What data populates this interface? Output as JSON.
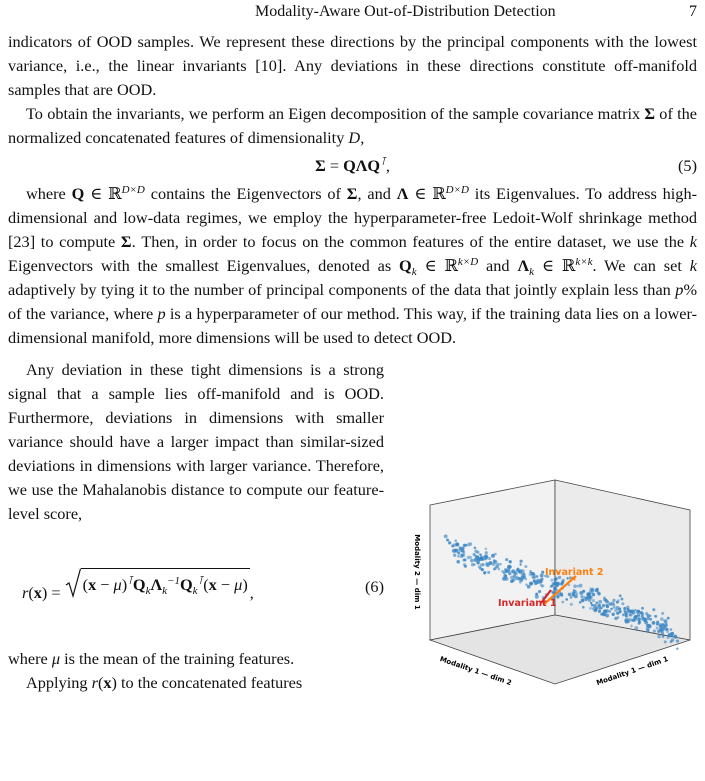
{
  "header": {
    "running_title": "Modality-Aware Out-of-Distribution Detection",
    "page_number": "7"
  },
  "paragraphs": [
    {
      "segments": [
        {
          "t": "indicators of OOD samples. We represent these directions by the principal components with the lowest variance, i.e., the linear invariants [10]. Any deviations in these directions constitute off-manifold samples that are OOD."
        }
      ]
    },
    {
      "segments": [
        {
          "t": "To obtain the invariants, we perform an Eigen decomposition of the sample covariance matrix "
        },
        {
          "b": "Σ"
        },
        {
          "t": " of the normalized concatenated features of dimensionality "
        },
        {
          "i": "D"
        },
        {
          "t": ","
        }
      ]
    },
    {
      "segments": [
        {
          "t": "where "
        },
        {
          "b": "Q"
        },
        {
          "t": " ∈ ℝ"
        },
        {
          "sup": "D×D"
        },
        {
          "t": " contains the Eigenvectors of "
        },
        {
          "b": "Σ"
        },
        {
          "t": ", and "
        },
        {
          "b": "Λ"
        },
        {
          "t": " ∈ ℝ"
        },
        {
          "sup": "D×D"
        },
        {
          "t": " its Eigenvalues. To address high-dimensional and low-data regimes, we employ the hyperparameter-free Ledoit-Wolf shrinkage method [23] to compute "
        },
        {
          "b": "Σ"
        },
        {
          "t": ". Then, in order to focus on the common features of the entire dataset, we use the "
        },
        {
          "i": "k"
        },
        {
          "t": " Eigenvectors with the smallest Eigenvalues, denoted as "
        },
        {
          "b": "Q"
        },
        {
          "sub": "k"
        },
        {
          "t": " ∈ ℝ"
        },
        {
          "sup": "k×D"
        },
        {
          "t": " and "
        },
        {
          "b": "Λ"
        },
        {
          "sub": "k"
        },
        {
          "t": " ∈ ℝ"
        },
        {
          "sup": "k×k"
        },
        {
          "t": ". We can set "
        },
        {
          "i": "k"
        },
        {
          "t": " adaptively by tying it to the number of principal components of the data that jointly explain less than "
        },
        {
          "i": "p"
        },
        {
          "t": "% of the variance, where "
        },
        {
          "i": "p"
        },
        {
          "t": " is a hyperparameter of our method. This way, if the training data lies on a lower-dimensional manifold, more dimensions will be used to detect OOD."
        }
      ]
    },
    {
      "segments": [
        {
          "t": "Any deviation in these tight dimensions is a strong signal that a sample lies off-manifold and is OOD. Furthermore, deviations in dimensions with smaller variance should have a larger impact than similar-sized deviations in dimensions with larger variance. Therefore, we use the Mahalanobis distance to compute our feature-level score,"
        }
      ]
    },
    {
      "segments": [
        {
          "t": "where "
        },
        {
          "i": "μ"
        },
        {
          "t": " is the mean of the training features."
        }
      ]
    },
    {
      "segments": [
        {
          "t": "Applying "
        },
        {
          "i": "r"
        },
        {
          "t": "("
        },
        {
          "b": "x"
        },
        {
          "t": ") to the concatenated features"
        }
      ]
    }
  ],
  "equations": [
    {
      "segments": [
        {
          "b": "Σ"
        },
        {
          "t": " = "
        },
        {
          "b": "QΛQ"
        },
        {
          "sup": "⊺"
        },
        {
          "t": ","
        }
      ],
      "number": "(5)"
    },
    {
      "lhs": [
        {
          "i": "r"
        },
        {
          "t": "("
        },
        {
          "b": "x"
        },
        {
          "t": ") = "
        }
      ],
      "radicand": [
        {
          "t": "("
        },
        {
          "b": "x"
        },
        {
          "t": " − "
        },
        {
          "i": "μ"
        },
        {
          "t": ")"
        },
        {
          "sup": "⊺"
        },
        {
          "b": "Q"
        },
        {
          "sub": "k"
        },
        {
          "b": "Λ"
        },
        {
          "sub": "k"
        },
        {
          "sup": "−1"
        },
        {
          "b": "Q"
        },
        {
          "sub": "k"
        },
        {
          "sup": "⊺"
        },
        {
          "t": "("
        },
        {
          "b": "x"
        },
        {
          "t": " − "
        },
        {
          "i": "μ"
        },
        {
          "t": ")"
        }
      ],
      "tail": [
        {
          "t": ","
        }
      ],
      "number": "(6)"
    }
  ],
  "figure": {
    "invariant_2": "Invariant 2",
    "invariant_1": "Invariant 1",
    "z_axis_label": "Modality 2 — dim 1",
    "x_axis_label": "Modality 1 — dim 2",
    "y_axis_label": "Modality 1 — dim 1"
  }
}
